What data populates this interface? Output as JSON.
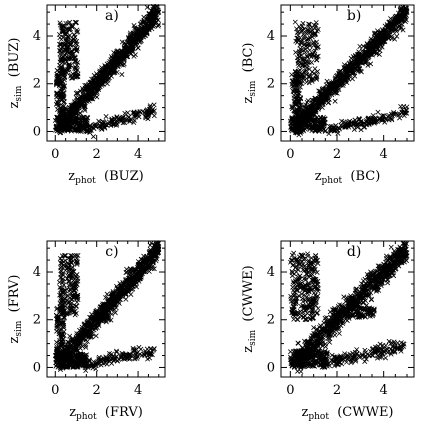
{
  "chart_data": [
    {
      "type": "scatter",
      "panel_label": "a)",
      "xlabel": {
        "main": "z",
        "sub": "phot",
        "tail": "(BUZ)"
      },
      "ylabel": {
        "main": "z",
        "sub": "sim",
        "tail": "(BUZ)"
      },
      "xlim": [
        -0.4,
        5.3
      ],
      "ylim": [
        -0.4,
        5.3
      ],
      "xticks": [
        "0",
        "2",
        "4"
      ],
      "yticks": [
        "0",
        "2",
        "4"
      ],
      "xtick_values": [
        0,
        2,
        4
      ],
      "ytick_values": [
        0,
        2,
        4
      ],
      "marker": "x",
      "seed": 11,
      "components": [
        {
          "name": "diagonal",
          "n": 900,
          "x_range": [
            0.2,
            5.0
          ],
          "slope": 1.0,
          "spread": 0.22
        },
        {
          "name": "upper-left plume",
          "n": 180,
          "x_range": [
            0.2,
            1.1
          ],
          "y_range": [
            2.2,
            4.6
          ]
        },
        {
          "name": "low-z base",
          "n": 180,
          "x_range": [
            0.0,
            1.6
          ],
          "y_range": [
            0.0,
            0.6
          ]
        },
        {
          "name": "bottom tail",
          "n": 140,
          "x_range": [
            1.5,
            4.8
          ],
          "y_start": 0.05,
          "y_end": 0.9,
          "spread": 0.12
        },
        {
          "name": "left vertical",
          "n": 120,
          "x_range": [
            0.05,
            0.45
          ],
          "y_range": [
            0.2,
            2.6
          ]
        }
      ]
    },
    {
      "type": "scatter",
      "panel_label": "b)",
      "xlabel": {
        "main": "z",
        "sub": "phot",
        "tail": "(BC)"
      },
      "ylabel": {
        "main": "z",
        "sub": "sim",
        "tail": "(BC)"
      },
      "xlim": [
        -0.4,
        5.3
      ],
      "ylim": [
        -0.4,
        5.3
      ],
      "xticks": [
        "0",
        "2",
        "4"
      ],
      "yticks": [
        "0",
        "2",
        "4"
      ],
      "xtick_values": [
        0,
        2,
        4
      ],
      "ytick_values": [
        0,
        2,
        4
      ],
      "marker": "x",
      "seed": 23,
      "components": [
        {
          "name": "diagonal",
          "n": 950,
          "x_range": [
            0.2,
            5.0
          ],
          "slope": 1.0,
          "spread": 0.2
        },
        {
          "name": "upper-left plume",
          "n": 170,
          "x_range": [
            0.2,
            1.2
          ],
          "y_range": [
            2.0,
            4.6
          ]
        },
        {
          "name": "low-z base",
          "n": 170,
          "x_range": [
            0.0,
            1.5
          ],
          "y_range": [
            0.0,
            0.6
          ]
        },
        {
          "name": "bottom tail",
          "n": 150,
          "x_range": [
            1.6,
            5.0
          ],
          "y_start": 0.05,
          "y_end": 0.8,
          "spread": 0.12
        },
        {
          "name": "left vertical",
          "n": 110,
          "x_range": [
            0.05,
            0.45
          ],
          "y_range": [
            0.2,
            2.4
          ]
        }
      ]
    },
    {
      "type": "scatter",
      "panel_label": "c)",
      "xlabel": {
        "main": "z",
        "sub": "phot",
        "tail": "(FRV)"
      },
      "ylabel": {
        "main": "z",
        "sub": "sim",
        "tail": "(FRV)"
      },
      "xlim": [
        -0.4,
        5.3
      ],
      "ylim": [
        -0.4,
        5.3
      ],
      "xticks": [
        "0",
        "2",
        "4"
      ],
      "yticks": [
        "0",
        "2",
        "4"
      ],
      "xtick_values": [
        0,
        2,
        4
      ],
      "ytick_values": [
        0,
        2,
        4
      ],
      "marker": "x",
      "seed": 37,
      "components": [
        {
          "name": "diagonal",
          "n": 950,
          "x_range": [
            0.2,
            5.0
          ],
          "slope": 1.0,
          "spread": 0.22
        },
        {
          "name": "upper-left plume",
          "n": 190,
          "x_range": [
            0.2,
            1.1
          ],
          "y_range": [
            2.2,
            4.7
          ]
        },
        {
          "name": "low-z base",
          "n": 180,
          "x_range": [
            0.0,
            1.5
          ],
          "y_range": [
            0.0,
            0.6
          ]
        },
        {
          "name": "bottom tail",
          "n": 140,
          "x_range": [
            1.4,
            4.8
          ],
          "y_start": 0.1,
          "y_end": 0.7,
          "spread": 0.12
        },
        {
          "name": "left vertical",
          "n": 120,
          "x_range": [
            0.05,
            0.45
          ],
          "y_range": [
            0.2,
            2.6
          ]
        }
      ]
    },
    {
      "type": "scatter",
      "panel_label": "d)",
      "xlabel": {
        "main": "z",
        "sub": "phot",
        "tail": "(CWWE)"
      },
      "ylabel": {
        "main": "z",
        "sub": "sim",
        "tail": "(CWWE)"
      },
      "xlim": [
        -0.4,
        5.3
      ],
      "ylim": [
        -0.4,
        5.3
      ],
      "xticks": [
        "0",
        "2",
        "4"
      ],
      "yticks": [
        "0",
        "2",
        "4"
      ],
      "xtick_values": [
        0,
        2,
        4
      ],
      "ytick_values": [
        0,
        2,
        4
      ],
      "marker": "x",
      "seed": 51,
      "components": [
        {
          "name": "diagonal",
          "n": 850,
          "x_range": [
            0.3,
            5.0
          ],
          "slope": 1.0,
          "spread": 0.25
        },
        {
          "name": "upper-left plume",
          "n": 260,
          "x_range": [
            0.0,
            1.2
          ],
          "y_range": [
            2.0,
            4.8
          ]
        },
        {
          "name": "low-z base",
          "n": 200,
          "x_range": [
            0.0,
            1.6
          ],
          "y_range": [
            0.0,
            0.7
          ]
        },
        {
          "name": "bottom tail",
          "n": 150,
          "x_range": [
            1.5,
            4.9
          ],
          "y_start": 0.2,
          "y_end": 0.9,
          "spread": 0.15
        },
        {
          "name": "horizontal branch",
          "n": 110,
          "x_range": [
            1.8,
            3.6
          ],
          "y_range": [
            2.1,
            2.5
          ]
        }
      ]
    }
  ]
}
